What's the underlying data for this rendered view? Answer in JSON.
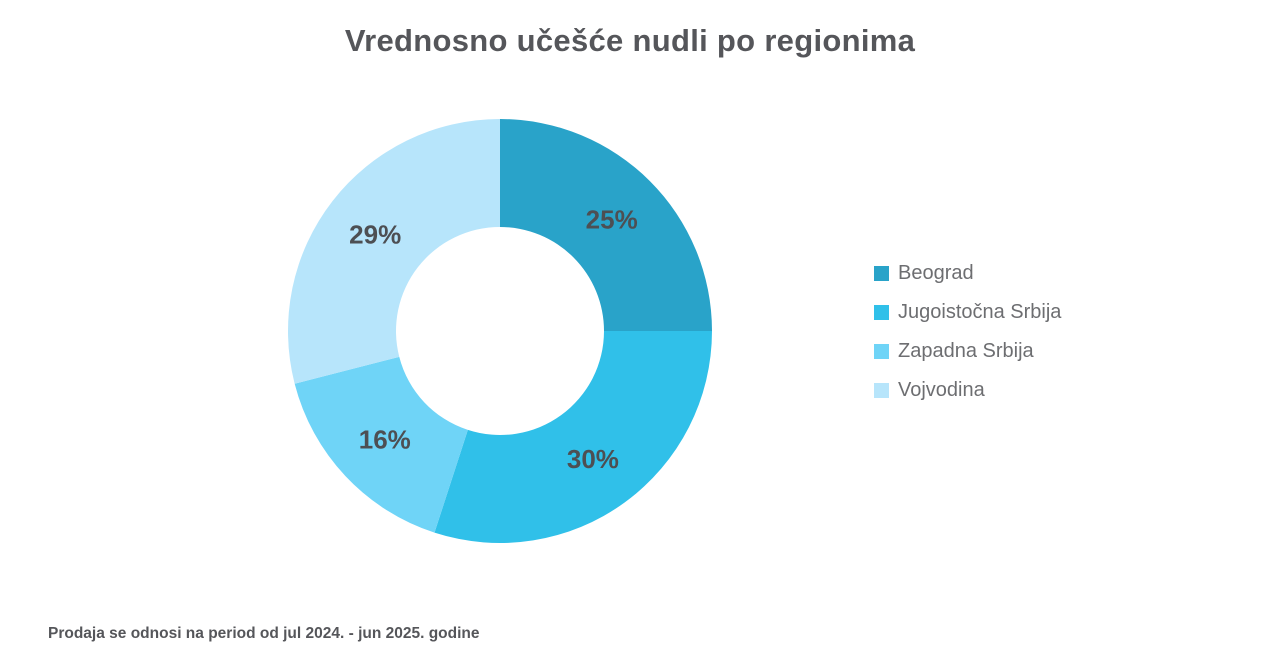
{
  "page": {
    "title": "Vrednosno učešće nudli po regionima",
    "footnote": "Prodaja se odnosi na period od jul 2024. - jun 2025. godine",
    "background": "#FFFFFF"
  },
  "text_colors": {
    "title": "#55565A",
    "value_labels": "#4D4F53",
    "legend": "#6D6E71",
    "footnote": "#55565A"
  },
  "chart_data": {
    "type": "pie",
    "subtype": "donut",
    "title": "Vrednosno učešće nudli po regionima",
    "unit": "%",
    "direction": "clockwise",
    "start_angle_deg": 0,
    "inner_radius_ratio": 0.49,
    "legend_position": "right",
    "categories": [
      "Beograd",
      "Jugoistočna Srbija",
      "Zapadna Srbija",
      "Vojvodina"
    ],
    "values": [
      25,
      30,
      16,
      29
    ],
    "segments": [
      {
        "label": "Beograd",
        "value": 25,
        "display_value": "25%",
        "color": "#29A3C9"
      },
      {
        "label": "Jugoistočna Srbija",
        "value": 30,
        "display_value": "30%",
        "color": "#30C0E9"
      },
      {
        "label": "Zapadna Srbija",
        "value": 16,
        "display_value": "16%",
        "color": "#6FD4F7"
      },
      {
        "label": "Vojvodina",
        "value": 29,
        "display_value": "29%",
        "color": "#B7E5FB"
      }
    ]
  }
}
